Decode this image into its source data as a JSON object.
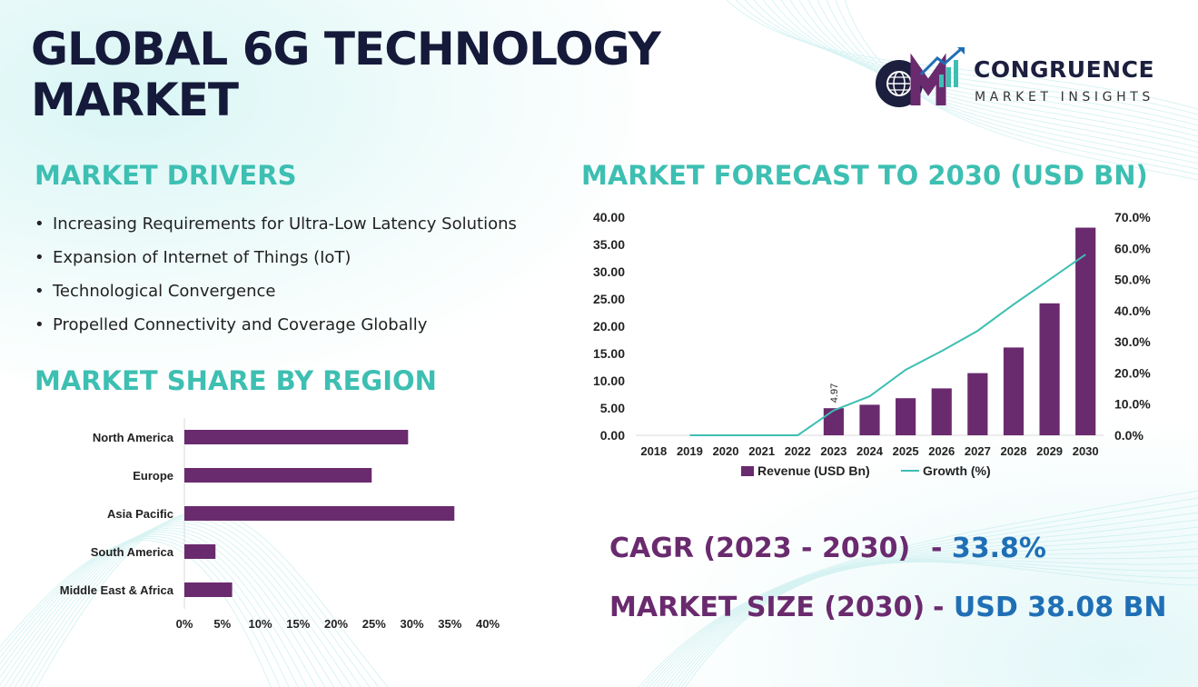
{
  "title": "GLOBAL 6G TECHNOLOGY MARKET",
  "logo": {
    "name": "CONGRUENCE",
    "tagline": "MARKET INSIGHTS",
    "icon": "cm-globe-growth-icon"
  },
  "drivers": {
    "heading": "MARKET DRIVERS",
    "items": [
      "Increasing Requirements for Ultra-Low Latency Solutions",
      "Expansion of Internet of Things (IoT)",
      "Technological Convergence",
      "Propelled Connectivity and Coverage Globally"
    ]
  },
  "region": {
    "heading": "MARKET SHARE BY REGION"
  },
  "forecast": {
    "heading": "MARKET FORECAST TO 2030 (USD BN)"
  },
  "stats": {
    "cagr_label": "CAGR (2023 - 2030)",
    "cagr_value": "33.8%",
    "size_label": "MARKET SIZE (2030)",
    "size_value": "USD 38.08 BN",
    "separator": "-"
  },
  "colors": {
    "bar": "#6a2a6e",
    "line": "#3dbfb2",
    "heading": "#3dbfb2",
    "title": "#151a3a",
    "value": "#1f6fb5"
  },
  "chart_data": [
    {
      "type": "bar",
      "orientation": "horizontal",
      "categories": [
        "North America",
        "Europe",
        "Asia Pacific",
        "South America",
        "Middle East & Africa"
      ],
      "values": [
        29.5,
        24.7,
        35.6,
        4.1,
        6.3
      ],
      "xlim": [
        0,
        40
      ],
      "xticks": [
        "0%",
        "5%",
        "10%",
        "15%",
        "20%",
        "25%",
        "30%",
        "35%",
        "40%"
      ],
      "grid": false
    },
    {
      "type": "bar",
      "categories": [
        "2018",
        "2019",
        "2020",
        "2021",
        "2022",
        "2023",
        "2024",
        "2025",
        "2026",
        "2027",
        "2028",
        "2029",
        "2030"
      ],
      "series": [
        {
          "name": "Revenue (USD Bn)",
          "type": "bar",
          "axis": "left",
          "values": [
            0,
            0,
            0,
            0,
            0,
            4.97,
            5.6,
            6.8,
            8.6,
            11.4,
            16.1,
            24.2,
            38.08
          ]
        },
        {
          "name": "Growth (%)",
          "type": "line",
          "axis": "right",
          "values": [
            null,
            0,
            0,
            0,
            0,
            8,
            12.5,
            21,
            27,
            33.5,
            42,
            50,
            58
          ]
        }
      ],
      "ylim": [
        0,
        40
      ],
      "yticks": [
        "0.00",
        "5.00",
        "10.00",
        "15.00",
        "20.00",
        "25.00",
        "30.00",
        "35.00",
        "40.00"
      ],
      "y2lim": [
        0,
        70
      ],
      "y2ticks": [
        "0.0%",
        "10.0%",
        "20.0%",
        "30.0%",
        "40.0%",
        "50.0%",
        "60.0%",
        "70.0%"
      ],
      "data_labels": [
        {
          "category": "2023",
          "text": "4.97"
        }
      ],
      "legend": "bottom",
      "grid": false
    }
  ]
}
